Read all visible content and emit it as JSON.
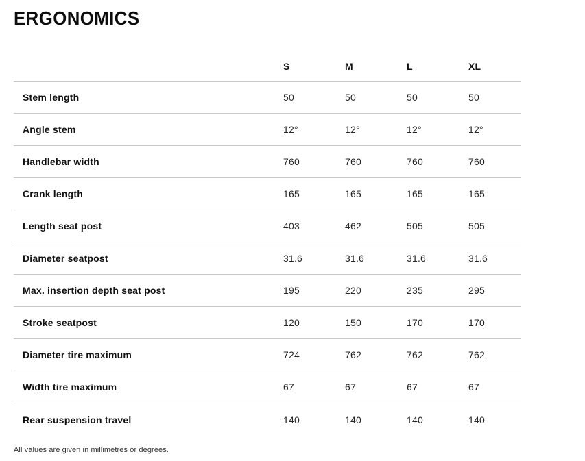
{
  "page": {
    "title": "ERGONOMICS",
    "footnote": "All values are given in millimetres or degrees."
  },
  "table": {
    "columns": [
      "S",
      "M",
      "L",
      "XL"
    ],
    "rows": [
      {
        "label": "Stem length",
        "values": [
          "50",
          "50",
          "50",
          "50"
        ]
      },
      {
        "label": "Angle stem",
        "values": [
          "12°",
          "12°",
          "12°",
          "12°"
        ]
      },
      {
        "label": "Handlebar width",
        "values": [
          "760",
          "760",
          "760",
          "760"
        ]
      },
      {
        "label": "Crank length",
        "values": [
          "165",
          "165",
          "165",
          "165"
        ]
      },
      {
        "label": "Length seat post",
        "values": [
          "403",
          "462",
          "505",
          "505"
        ]
      },
      {
        "label": "Diameter seatpost",
        "values": [
          "31.6",
          "31.6",
          "31.6",
          "31.6"
        ]
      },
      {
        "label": "Max. insertion depth seat post",
        "values": [
          "195",
          "220",
          "235",
          "295"
        ]
      },
      {
        "label": "Stroke seatpost",
        "values": [
          "120",
          "150",
          "170",
          "170"
        ]
      },
      {
        "label": "Diameter tire maximum",
        "values": [
          "724",
          "762",
          "762",
          "762"
        ]
      },
      {
        "label": "Width tire maximum",
        "values": [
          "67",
          "67",
          "67",
          "67"
        ]
      },
      {
        "label": "Rear suspension travel",
        "values": [
          "140",
          "140",
          "140",
          "140"
        ]
      }
    ]
  },
  "colors": {
    "text": "#1a1a1a",
    "divider": "#c8c8c8",
    "background": "#ffffff"
  }
}
